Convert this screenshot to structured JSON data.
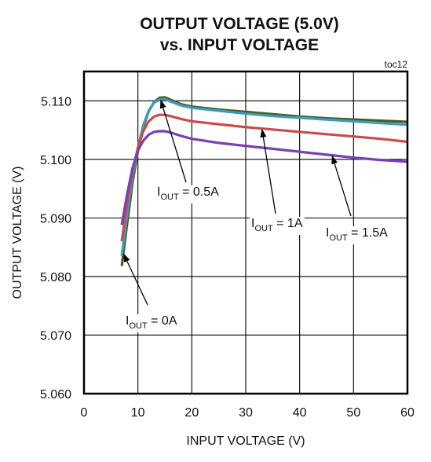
{
  "chart_data": {
    "type": "line",
    "title_line1": "OUTPUT VOLTAGE (5.0V)",
    "title_line2": "vs. INPUT VOLTAGE",
    "figure_code": "toc12",
    "xlabel": "INPUT VOLTAGE (V)",
    "ylabel": "OUTPUT  VOLTAGE  (V)",
    "xlim": [
      0,
      60
    ],
    "ylim": [
      5.06,
      5.115
    ],
    "x_ticks": [
      "0",
      "10",
      "20",
      "30",
      "40",
      "50",
      "60"
    ],
    "y_ticks": [
      "5.060",
      "5.070",
      "5.080",
      "5.090",
      "5.100",
      "5.110"
    ],
    "grid": true,
    "series": [
      {
        "name": "IOUT = 0A",
        "label_main": "I",
        "label_sub": "OUT",
        "label_rest": " = 0A",
        "color": "#4a5a1e",
        "points": [
          [
            7,
            5.0818
          ],
          [
            8,
            5.089
          ],
          [
            9,
            5.096
          ],
          [
            10,
            5.1015
          ],
          [
            11,
            5.1055
          ],
          [
            12,
            5.1082
          ],
          [
            13,
            5.1098
          ],
          [
            14,
            5.1105
          ],
          [
            15,
            5.1106
          ],
          [
            16,
            5.1102
          ],
          [
            18,
            5.1094
          ],
          [
            20,
            5.109
          ],
          [
            25,
            5.1085
          ],
          [
            30,
            5.1081
          ],
          [
            35,
            5.1077
          ],
          [
            40,
            5.1073
          ],
          [
            45,
            5.107
          ],
          [
            50,
            5.1068
          ],
          [
            55,
            5.1066
          ],
          [
            60,
            5.1064
          ]
        ]
      },
      {
        "name": "IOUT = 0.5A",
        "label_main": "I",
        "label_sub": "OUT",
        "label_rest": " = 0.5A",
        "color": "#3a9cbf",
        "points": [
          [
            7,
            5.0835
          ],
          [
            8,
            5.0905
          ],
          [
            9,
            5.097
          ],
          [
            10,
            5.102
          ],
          [
            11,
            5.1058
          ],
          [
            12,
            5.1083
          ],
          [
            13,
            5.1097
          ],
          [
            14,
            5.1102
          ],
          [
            15,
            5.1103
          ],
          [
            16,
            5.1099
          ],
          [
            18,
            5.1092
          ],
          [
            20,
            5.1088
          ],
          [
            25,
            5.1083
          ],
          [
            30,
            5.1078
          ],
          [
            35,
            5.1074
          ],
          [
            40,
            5.1071
          ],
          [
            45,
            5.1068
          ],
          [
            50,
            5.1065
          ],
          [
            55,
            5.1062
          ],
          [
            60,
            5.1059
          ]
        ]
      },
      {
        "name": "IOUT = 1A",
        "label_main": "I",
        "label_sub": "OUT",
        "label_rest": " = 1A",
        "color": "#cc4a4a",
        "points": [
          [
            7,
            5.086
          ],
          [
            8,
            5.0925
          ],
          [
            9,
            5.098
          ],
          [
            10,
            5.102
          ],
          [
            11,
            5.1048
          ],
          [
            12,
            5.1065
          ],
          [
            13,
            5.1073
          ],
          [
            14,
            5.1076
          ],
          [
            15,
            5.1076
          ],
          [
            16,
            5.1074
          ],
          [
            18,
            5.1069
          ],
          [
            20,
            5.1065
          ],
          [
            25,
            5.106
          ],
          [
            30,
            5.1055
          ],
          [
            35,
            5.1051
          ],
          [
            40,
            5.1047
          ],
          [
            45,
            5.1043
          ],
          [
            50,
            5.1039
          ],
          [
            55,
            5.1035
          ],
          [
            60,
            5.103
          ]
        ]
      },
      {
        "name": "IOUT = 1.5A",
        "label_main": "I",
        "label_sub": "OUT",
        "label_rest": " = 1.5A",
        "color": "#7a3fb5",
        "points": [
          [
            7,
            5.0888
          ],
          [
            8,
            5.094
          ],
          [
            9,
            5.0985
          ],
          [
            10,
            5.1015
          ],
          [
            11,
            5.1032
          ],
          [
            12,
            5.1042
          ],
          [
            13,
            5.1047
          ],
          [
            14,
            5.1048
          ],
          [
            15,
            5.1048
          ],
          [
            16,
            5.1046
          ],
          [
            18,
            5.104
          ],
          [
            20,
            5.1035
          ],
          [
            25,
            5.1028
          ],
          [
            30,
            5.1023
          ],
          [
            35,
            5.1018
          ],
          [
            40,
            5.1013
          ],
          [
            45,
            5.1008
          ],
          [
            50,
            5.1003
          ],
          [
            55,
            5.0999
          ],
          [
            60,
            5.0996
          ]
        ]
      }
    ]
  }
}
